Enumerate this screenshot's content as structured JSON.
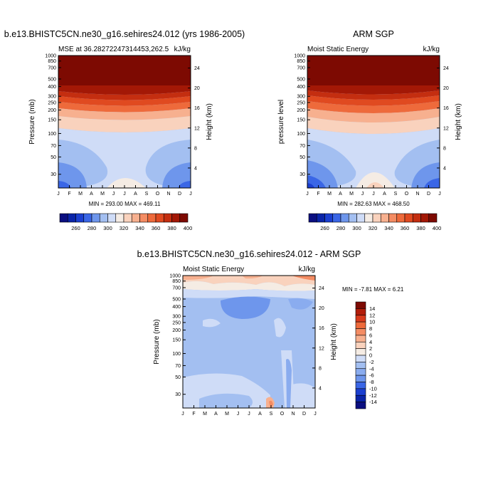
{
  "chart_data": [
    {
      "type": "heatmap",
      "title": "b.e13.BHISTC5CN.ne30_g16.sehires24.012 (yrs 1986-2005)",
      "subtitle_left": "MSE at 36.28272247314453,262.5",
      "subtitle_right": "kJ/kg",
      "ylabel_left": "Pressure (mb)",
      "ylabel_right": "Height (km)",
      "x_tick_labels": [
        "J",
        "F",
        "M",
        "A",
        "M",
        "J",
        "J",
        "A",
        "S",
        "O",
        "N",
        "D",
        "J"
      ],
      "pressure_ticks": [
        "30",
        "50",
        "70",
        "100",
        "150",
        "200",
        "250",
        "300",
        "400",
        "500",
        "700",
        "850",
        "1000"
      ],
      "height_ticks": [
        "24",
        "20",
        "16",
        "12",
        "8",
        "4"
      ],
      "stats": "MIN = 293.00  MAX = 469.11",
      "colorbar": {
        "orientation": "horizontal",
        "tick_labels": [
          "260",
          "280",
          "300",
          "320",
          "340",
          "360",
          "380",
          "400"
        ],
        "colors": [
          "#0b0f80",
          "#0a24a8",
          "#1b3fd0",
          "#3a66e6",
          "#6e96ec",
          "#a3bff1",
          "#cfdcf7",
          "#f5ece4",
          "#f9d2bd",
          "#f7b08f",
          "#f48c63",
          "#ee6a3b",
          "#e04a20",
          "#c42e10",
          "#a31806",
          "#7d0a02"
        ]
      }
    },
    {
      "type": "heatmap",
      "title": "ARM SGP",
      "subtitle_left": "Moist Static Energy",
      "subtitle_right": "kJ/kg",
      "ylabel_left": "pressure level",
      "ylabel_right": "Height (km)",
      "x_tick_labels": [
        "J",
        "F",
        "M",
        "A",
        "M",
        "J",
        "J",
        "A",
        "S",
        "O",
        "N",
        "D",
        "J"
      ],
      "pressure_ticks": [
        "30",
        "50",
        "70",
        "100",
        "150",
        "200",
        "250",
        "300",
        "400",
        "500",
        "700",
        "850",
        "1000"
      ],
      "height_ticks": [
        "24",
        "20",
        "16",
        "12",
        "8",
        "4"
      ],
      "stats": "MIN = 282.63  MAX = 468.50",
      "colorbar": {
        "orientation": "horizontal",
        "tick_labels": [
          "260",
          "280",
          "300",
          "320",
          "340",
          "360",
          "380",
          "400"
        ],
        "colors": [
          "#0b0f80",
          "#0a24a8",
          "#1b3fd0",
          "#3a66e6",
          "#6e96ec",
          "#a3bff1",
          "#cfdcf7",
          "#f5ece4",
          "#f9d2bd",
          "#f7b08f",
          "#f48c63",
          "#ee6a3b",
          "#e04a20",
          "#c42e10",
          "#a31806",
          "#7d0a02"
        ]
      }
    },
    {
      "type": "heatmap",
      "title": "b.e13.BHISTC5CN.ne30_g16.sehires24.012 - ARM SGP",
      "subtitle_left": "Moist Static Energy",
      "subtitle_right": "kJ/kg",
      "ylabel_left": "Pressure (mb)",
      "ylabel_right": "Height (km)",
      "x_tick_labels": [
        "J",
        "F",
        "M",
        "A",
        "M",
        "J",
        "J",
        "A",
        "S",
        "O",
        "N",
        "D",
        "J"
      ],
      "pressure_ticks": [
        "30",
        "50",
        "70",
        "100",
        "150",
        "200",
        "250",
        "300",
        "400",
        "500",
        "700",
        "850",
        "1000"
      ],
      "height_ticks": [
        "24",
        "20",
        "16",
        "12",
        "8",
        "4"
      ],
      "stats": "MIN = -7.81  MAX =  6.21",
      "colorbar": {
        "orientation": "vertical",
        "tick_labels": [
          "14",
          "12",
          "10",
          "8",
          "6",
          "4",
          "2",
          "0",
          "-2",
          "-4",
          "-6",
          "-8",
          "-10",
          "-12",
          "-14"
        ],
        "colors": [
          "#7d0a02",
          "#b21d0a",
          "#d83a1c",
          "#ee6a3b",
          "#f48c63",
          "#f7b08f",
          "#f9d2bd",
          "#f5ece4",
          "#cfdcf7",
          "#a3bff1",
          "#8aacef",
          "#6e96ec",
          "#3a66e6",
          "#1b3fd0",
          "#0a24a8",
          "#0b0f80"
        ]
      }
    }
  ]
}
